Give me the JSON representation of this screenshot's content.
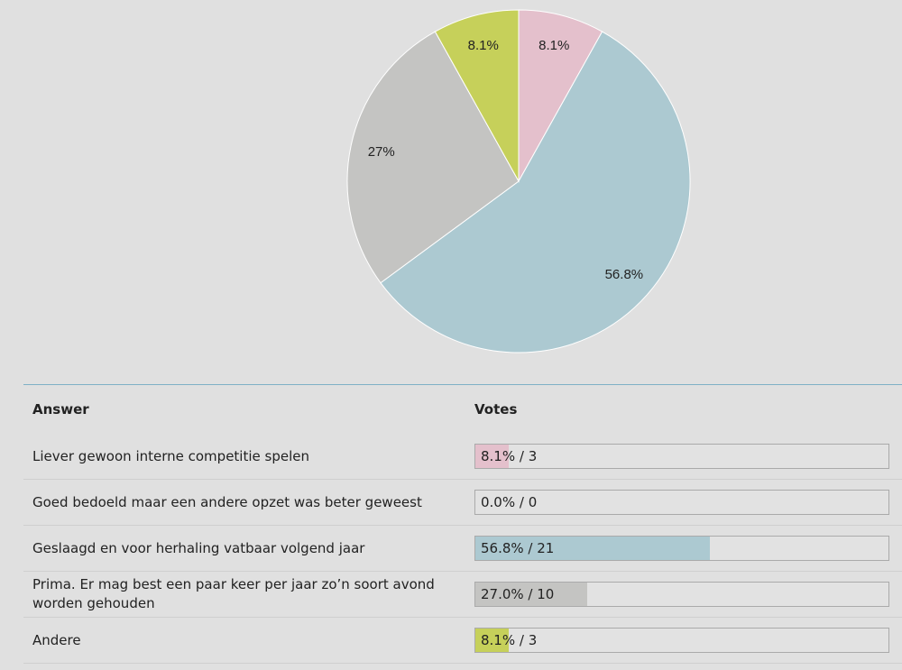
{
  "chart_data": {
    "type": "pie",
    "slices": [
      {
        "label": "Liever gewoon interne competitie spelen",
        "value": 8.1,
        "votes": 3,
        "display": "8.1%",
        "color": "#e4c0cc"
      },
      {
        "label": "Goed bedoeld maar een andere opzet was beter geweest",
        "value": 0.0,
        "votes": 0,
        "display": "",
        "color": "#e3c09a"
      },
      {
        "label": "Geslaagd en voor herhaling vatbaar volgend jaar",
        "value": 56.8,
        "votes": 21,
        "display": "56.8%",
        "color": "#acc9d1"
      },
      {
        "label": "Prima. Er mag best een paar keer per jaar zo'n soort avond worden gehouden",
        "value": 27.0,
        "votes": 10,
        "display": "27%",
        "color": "#c4c4c2"
      },
      {
        "label": "Andere",
        "value": 8.1,
        "votes": 3,
        "display": "8.1%",
        "color": "#c6d05a"
      }
    ]
  },
  "table": {
    "header_answer": "Answer",
    "header_votes": "Votes",
    "rows": [
      {
        "answer": "Liever gewoon interne competitie spelen",
        "votes_text": "8.1% / 3",
        "percent": 8.1,
        "color": "#e4c0cc"
      },
      {
        "answer": "Goed bedoeld maar een andere opzet was beter geweest",
        "votes_text": "0.0% / 0",
        "percent": 0.0,
        "color": "#e3c09a"
      },
      {
        "answer": "Geslaagd en voor herhaling vatbaar volgend jaar",
        "votes_text": "56.8% / 21",
        "percent": 56.8,
        "color": "#acc9d1"
      },
      {
        "answer": "Prima. Er mag best een paar keer per jaar zo’n soort avond worden gehouden",
        "votes_text": "27.0% / 10",
        "percent": 27.0,
        "color": "#c4c4c2"
      },
      {
        "answer": "Andere",
        "votes_text": "8.1% / 3",
        "percent": 8.1,
        "color": "#c6d05a"
      }
    ]
  }
}
